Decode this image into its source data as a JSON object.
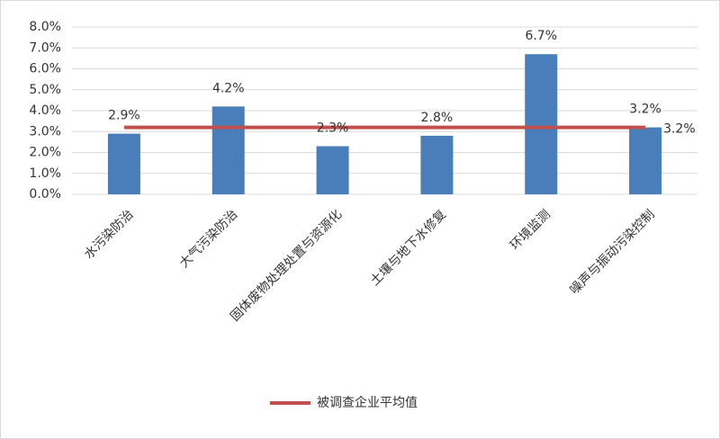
{
  "chart_data": {
    "type": "bar",
    "categories": [
      "水污染防治",
      "大气污染防治",
      "固体废物处理处置与资源化",
      "土壤与地下水修复",
      "环境监测",
      "噪声与振动污染控制"
    ],
    "values": [
      2.9,
      4.2,
      2.3,
      2.8,
      6.7,
      3.2
    ],
    "value_labels": [
      "2.9%",
      "4.2%",
      "2.3%",
      "2.8%",
      "6.7%",
      "3.2%"
    ],
    "color": "#4a7ebb",
    "ylim": [
      0,
      8
    ],
    "yticks": [
      {
        "value": 0,
        "label": "0.0%"
      },
      {
        "value": 1,
        "label": "1.0%"
      },
      {
        "value": 2,
        "label": "2.0%"
      },
      {
        "value": 3,
        "label": "3.0%"
      },
      {
        "value": 4,
        "label": "4.0%"
      },
      {
        "value": 5,
        "label": "5.0%"
      },
      {
        "value": 6,
        "label": "6.0%"
      },
      {
        "value": 7,
        "label": "7.0%"
      },
      {
        "value": 8,
        "label": "8.0%"
      }
    ],
    "grid": true,
    "reference_line": {
      "name": "被调查企业平均值",
      "value": 3.2,
      "label": "3.2%",
      "color": "#c0504d"
    },
    "legend": "bottom"
  }
}
